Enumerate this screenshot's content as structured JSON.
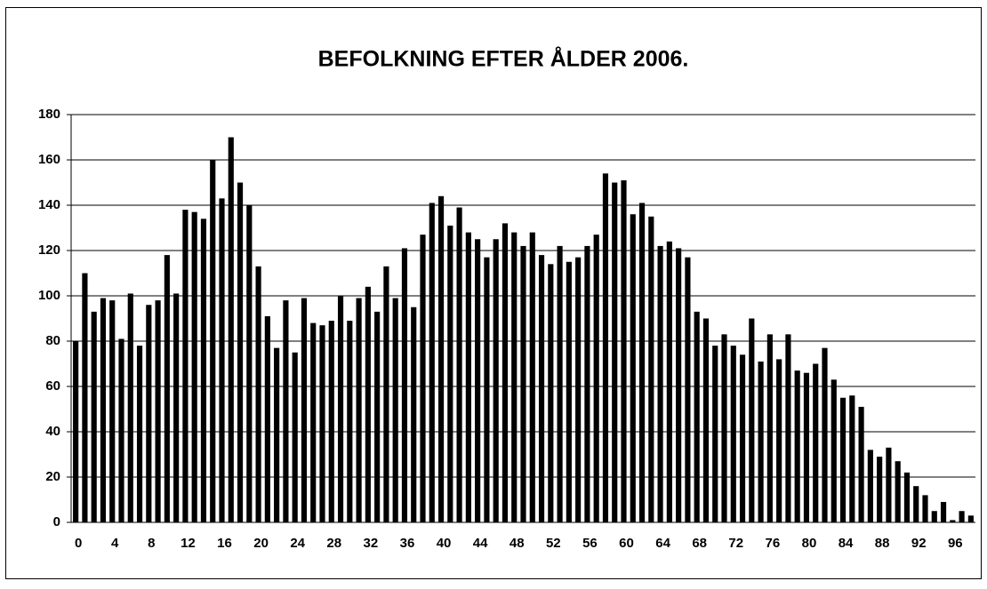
{
  "chart_data": {
    "type": "bar",
    "title": "BEFOLKNING EFTER ÅLDER 2006.",
    "categories": [
      "0",
      null,
      null,
      null,
      "4",
      null,
      null,
      null,
      "8",
      null,
      null,
      null,
      "12",
      null,
      null,
      null,
      "16",
      null,
      null,
      null,
      "20",
      null,
      null,
      null,
      "24",
      null,
      null,
      null,
      "28",
      null,
      null,
      null,
      "32",
      null,
      null,
      null,
      "36",
      null,
      null,
      null,
      "40",
      null,
      null,
      null,
      "44",
      null,
      null,
      null,
      "48",
      null,
      null,
      null,
      "52",
      null,
      null,
      null,
      "56",
      null,
      null,
      null,
      "60",
      null,
      null,
      null,
      "64",
      null,
      null,
      null,
      "68",
      null,
      null,
      null,
      "72",
      null,
      null,
      null,
      "76",
      null,
      null,
      null,
      "80",
      null,
      null,
      null,
      "84",
      null,
      null,
      null,
      "88",
      null,
      null,
      null,
      "92",
      null,
      null,
      null,
      "96",
      null,
      null
    ],
    "values": [
      80,
      110,
      93,
      99,
      98,
      81,
      101,
      78,
      96,
      98,
      118,
      101,
      138,
      137,
      134,
      160,
      143,
      170,
      150,
      140,
      113,
      91,
      77,
      98,
      75,
      99,
      88,
      87,
      89,
      100,
      89,
      99,
      104,
      93,
      113,
      99,
      121,
      95,
      127,
      141,
      144,
      131,
      139,
      128,
      125,
      117,
      125,
      132,
      128,
      122,
      128,
      118,
      114,
      122,
      115,
      117,
      122,
      127,
      154,
      150,
      151,
      136,
      141,
      135,
      122,
      124,
      121,
      117,
      93,
      90,
      78,
      83,
      78,
      74,
      90,
      71,
      83,
      72,
      83,
      67,
      66,
      70,
      77,
      63,
      55,
      56,
      51,
      32,
      29,
      33,
      27,
      22,
      16,
      12,
      5,
      9,
      1,
      5,
      3
    ],
    "color": "#000000",
    "ylim": [
      0,
      180
    ],
    "yticks": [
      0,
      20,
      40,
      60,
      80,
      100,
      120,
      140,
      160,
      180
    ],
    "grid": true
  }
}
